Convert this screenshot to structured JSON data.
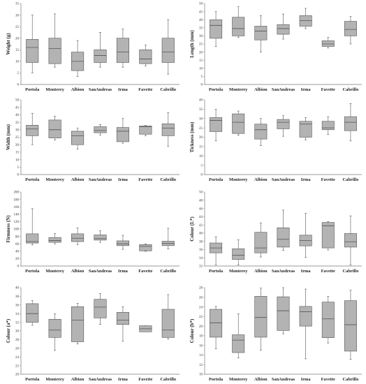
{
  "categories": [
    "Portola",
    "Monterey",
    "Albion",
    "SanAndreas",
    "Irma",
    "Favette",
    "Cabrillo"
  ],
  "colors": {
    "box_fill": "#b3b3b3",
    "stroke": "#555555",
    "axis": "#777777"
  },
  "chart_data": [
    {
      "type": "box",
      "ylabel": "Weight (g)",
      "ylim": [
        0,
        35
      ],
      "yticks": [
        0,
        5,
        10,
        15,
        20,
        25,
        30,
        35
      ],
      "boxes": [
        {
          "min": 5,
          "q1": 9.5,
          "median": 16,
          "q3": 19.5,
          "max": 30
        },
        {
          "min": 7.5,
          "q1": 9,
          "median": 15.5,
          "q3": 20,
          "max": 30.5
        },
        {
          "min": 3.5,
          "q1": 6,
          "median": 10,
          "q3": 14,
          "max": 19
        },
        {
          "min": 7.5,
          "q1": 9.5,
          "median": 12.5,
          "q3": 15,
          "max": 22.5
        },
        {
          "min": 7.5,
          "q1": 9.5,
          "median": 14,
          "q3": 20,
          "max": 24
        },
        {
          "min": 8,
          "q1": 9,
          "median": 11,
          "q3": 15,
          "max": 17
        },
        {
          "min": 4.5,
          "q1": 9.5,
          "median": 14,
          "q3": 20,
          "max": 28
        }
      ]
    },
    {
      "type": "box",
      "ylabel": "Length (mm)",
      "ylim": [
        0,
        50
      ],
      "yticks": [
        0,
        5,
        10,
        15,
        20,
        25,
        30,
        35,
        40,
        45,
        50
      ],
      "boxes": [
        {
          "min": 23.5,
          "q1": 28.5,
          "median": 36.5,
          "q3": 40,
          "max": 45
        },
        {
          "min": 29,
          "q1": 30,
          "median": 34.5,
          "q3": 41.5,
          "max": 48
        },
        {
          "min": 20,
          "q1": 27.5,
          "median": 33,
          "q3": 36,
          "max": 42.5
        },
        {
          "min": 28,
          "q1": 31,
          "median": 34.5,
          "q3": 37,
          "max": 43.5
        },
        {
          "min": 34.5,
          "q1": 36,
          "median": 39.5,
          "q3": 42.5,
          "max": 47
        },
        {
          "min": 22.5,
          "q1": 23.5,
          "median": 25,
          "q3": 27,
          "max": 29
        },
        {
          "min": 25,
          "q1": 30,
          "median": 34,
          "q3": 39,
          "max": 42
        }
      ]
    },
    {
      "type": "box",
      "ylabel": "Width (mm)",
      "ylim": [
        0,
        50
      ],
      "yticks": [
        0,
        5,
        10,
        15,
        20,
        25,
        30,
        35,
        40,
        45,
        50
      ],
      "boxes": [
        {
          "min": 20,
          "q1": 26,
          "median": 30.5,
          "q3": 33,
          "max": 41
        },
        {
          "min": 23,
          "q1": 24.5,
          "median": 30,
          "q3": 36.5,
          "max": 39
        },
        {
          "min": 17,
          "q1": 20,
          "median": 26,
          "q3": 29,
          "max": 31
        },
        {
          "min": 26.5,
          "q1": 28,
          "median": 29.5,
          "q3": 32,
          "max": 33.5
        },
        {
          "min": 21,
          "q1": 22,
          "median": 29,
          "q3": 31.5,
          "max": 37.5
        },
        {
          "min": 26,
          "q1": 27,
          "median": 32,
          "q3": 32.5,
          "max": 33
        },
        {
          "min": 19,
          "q1": 26,
          "median": 31,
          "q3": 34,
          "max": 41.5
        }
      ]
    },
    {
      "type": "box",
      "ylabel": "Tickness (mm)",
      "ylim": [
        0,
        40
      ],
      "yticks": [
        0,
        5,
        10,
        15,
        20,
        25,
        30,
        35,
        40
      ],
      "boxes": [
        {
          "min": 18,
          "q1": 23,
          "median": 29,
          "q3": 30.5,
          "max": 35
        },
        {
          "min": 21,
          "q1": 22,
          "median": 28,
          "q3": 32.5,
          "max": 34
        },
        {
          "min": 15.5,
          "q1": 19,
          "median": 24,
          "q3": 27,
          "max": 30
        },
        {
          "min": 20.5,
          "q1": 24.5,
          "median": 28,
          "q3": 29.5,
          "max": 31.5
        },
        {
          "min": 18.5,
          "q1": 20,
          "median": 27,
          "q3": 28.5,
          "max": 30.5
        },
        {
          "min": 21.5,
          "q1": 24,
          "median": 25,
          "q3": 28.5,
          "max": 31
        },
        {
          "min": 18,
          "q1": 23.5,
          "median": 28,
          "q3": 31,
          "max": 38
        }
      ]
    },
    {
      "type": "box",
      "ylabel": "Firmness (N)",
      "ylim": [
        0,
        200
      ],
      "yticks": [
        0,
        20,
        40,
        60,
        80,
        100,
        120,
        140,
        160,
        180,
        200
      ],
      "boxes": [
        {
          "min": 57,
          "q1": 62,
          "median": 66,
          "q3": 87,
          "max": 155
        },
        {
          "min": 60,
          "q1": 64,
          "median": 69,
          "q3": 77,
          "max": 88
        },
        {
          "min": 58,
          "q1": 66,
          "median": 75,
          "q3": 87,
          "max": 103
        },
        {
          "min": 64,
          "q1": 70,
          "median": 74,
          "q3": 84,
          "max": 95
        },
        {
          "min": 45,
          "q1": 55,
          "median": 60,
          "q3": 68,
          "max": 83
        },
        {
          "min": 40,
          "q1": 41,
          "median": 53,
          "q3": 58,
          "max": 60
        },
        {
          "min": 46,
          "q1": 55,
          "median": 61,
          "q3": 67,
          "max": 102
        }
      ]
    },
    {
      "type": "box",
      "ylabel": "Colour (L*)",
      "ylim": [
        32,
        50
      ],
      "yticks": [
        32,
        34,
        36,
        38,
        40,
        42,
        44,
        46,
        48,
        50
      ],
      "boxes": [
        {
          "min": 32.3,
          "q1": 35.2,
          "median": 36.4,
          "q3": 37.6,
          "max": 39.1
        },
        {
          "min": 32.3,
          "q1": 33.6,
          "median": 34.6,
          "q3": 36.2,
          "max": 38.4
        },
        {
          "min": 34.2,
          "q1": 35.2,
          "median": 36.4,
          "q3": 40.2,
          "max": 42.5
        },
        {
          "min": 35.8,
          "q1": 36.6,
          "median": 38.5,
          "q3": 41.3,
          "max": 45.6
        },
        {
          "min": 34.1,
          "q1": 36.9,
          "median": 38.2,
          "q3": 39.5,
          "max": 44.8
        },
        {
          "min": 35.9,
          "q1": 36.4,
          "median": 41.8,
          "q3": 42.6,
          "max": 42.8
        },
        {
          "min": 32.3,
          "q1": 36.6,
          "median": 37.9,
          "q3": 39.9,
          "max": 44.2
        }
      ]
    },
    {
      "type": "box",
      "ylabel": "Colour (a*)",
      "ylim": [
        20,
        40
      ],
      "yticks": [
        20,
        22,
        24,
        26,
        28,
        30,
        32,
        34,
        36,
        38,
        40
      ],
      "boxes": [
        {
          "min": 31.3,
          "q1": 32,
          "median": 34,
          "q3": 36.3,
          "max": 37
        },
        {
          "min": 25.5,
          "q1": 28.5,
          "median": 30.2,
          "q3": 32.7,
          "max": 34
        },
        {
          "min": 27,
          "q1": 27.5,
          "median": 32.5,
          "q3": 35.6,
          "max": 36.4
        },
        {
          "min": 31.5,
          "q1": 33,
          "median": 35.5,
          "q3": 37.3,
          "max": 38.6
        },
        {
          "min": 27.6,
          "q1": 31.5,
          "median": 32.5,
          "q3": 34.3,
          "max": 35.6
        },
        {
          "min": 29.8,
          "q1": 29.8,
          "median": 30.5,
          "q3": 31.2,
          "max": 31.2
        },
        {
          "min": 28.1,
          "q1": 28.5,
          "median": 30.2,
          "q3": 35,
          "max": 38.4
        }
      ]
    },
    {
      "type": "box",
      "ylabel": "Colour (b*)",
      "ylim": [
        10,
        28
      ],
      "yticks": [
        10,
        12,
        14,
        16,
        18,
        20,
        22,
        24,
        26,
        28
      ],
      "boxes": [
        {
          "min": 15.3,
          "q1": 17.7,
          "median": 20.7,
          "q3": 23.5,
          "max": 24.1
        },
        {
          "min": 13.4,
          "q1": 14.5,
          "median": 17.1,
          "q3": 18.2,
          "max": 22.6
        },
        {
          "min": 15,
          "q1": 17.7,
          "median": 21.8,
          "q3": 26.2,
          "max": 27.9
        },
        {
          "min": 18.4,
          "q1": 19.1,
          "median": 23.2,
          "q3": 26.1,
          "max": 28
        },
        {
          "min": 13.2,
          "q1": 20,
          "median": 23,
          "q3": 24.1,
          "max": 27.7
        },
        {
          "min": 16.5,
          "q1": 17.6,
          "median": 21.5,
          "q3": 25,
          "max": 26.2
        },
        {
          "min": 13.1,
          "q1": 14.8,
          "median": 20.3,
          "q3": 25.3,
          "max": 27.5
        }
      ]
    }
  ]
}
